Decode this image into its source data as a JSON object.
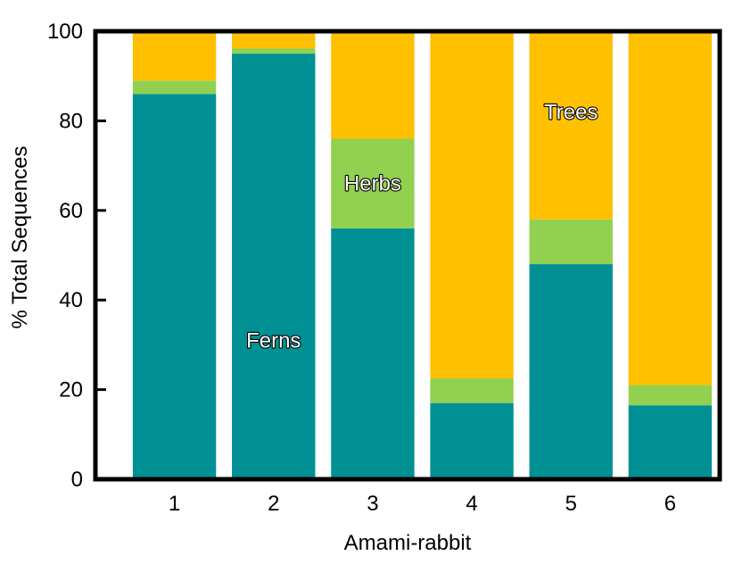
{
  "chart_data": {
    "type": "bar",
    "stacked": true,
    "title": "",
    "xlabel": "Amami-rabbit",
    "ylabel": "% Total Sequences",
    "ylim": [
      0,
      100
    ],
    "yticks": [
      0,
      20,
      40,
      60,
      80,
      100
    ],
    "categories": [
      "1",
      "2",
      "3",
      "4",
      "5",
      "6"
    ],
    "series": [
      {
        "name": "Ferns",
        "color": "#009093",
        "values": [
          86,
          95,
          56,
          17,
          48,
          16.5
        ]
      },
      {
        "name": "Herbs",
        "color": "#92D050",
        "values": [
          3,
          1.2,
          20,
          5.5,
          10,
          4.5
        ]
      },
      {
        "name": "Trees",
        "color": "#FFC000",
        "values": [
          11,
          3.8,
          24,
          77.5,
          42,
          79
        ]
      }
    ],
    "annotations": [
      {
        "text": "Ferns",
        "category": "2",
        "y": 31
      },
      {
        "text": "Herbs",
        "category": "3",
        "y": 66
      },
      {
        "text": "Trees",
        "category": "5",
        "y": 82
      }
    ],
    "grid": false,
    "legend": "none"
  }
}
